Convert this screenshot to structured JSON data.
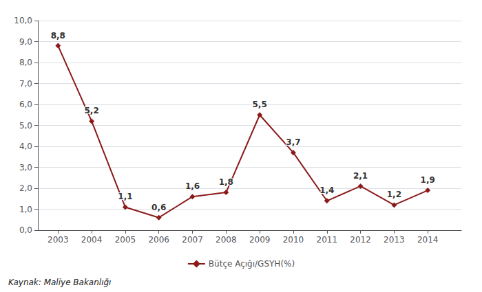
{
  "chart_data": {
    "type": "line",
    "x": [
      2003,
      2004,
      2005,
      2006,
      2007,
      2008,
      2009,
      2010,
      2011,
      2012,
      2013,
      2014
    ],
    "series": [
      {
        "name": "Bütçe Açığı/GSYH(%)",
        "color": "#8B1A1A",
        "marker": "diamond",
        "values": [
          8.8,
          5.2,
          1.1,
          0.6,
          1.6,
          1.8,
          5.5,
          3.7,
          1.4,
          2.1,
          1.2,
          1.9
        ],
        "value_labels": [
          "8,8",
          "5,2",
          "1,1",
          "0,6",
          "1,6",
          "1,8",
          "5,5",
          "3,7",
          "1,4",
          "2,1",
          "1,2",
          "1,9"
        ]
      }
    ],
    "xlim": [
      2002.4,
      2015.0
    ],
    "xticks": [
      2003,
      2004,
      2005,
      2006,
      2007,
      2008,
      2009,
      2010,
      2011,
      2012,
      2013,
      2014
    ],
    "ylim": [
      0,
      10
    ],
    "yticks": [
      {
        "value": 0,
        "label": "0,0"
      },
      {
        "value": 1,
        "label": "1,0"
      },
      {
        "value": 2,
        "label": "2,0"
      },
      {
        "value": 3,
        "label": "3,0"
      },
      {
        "value": 4,
        "label": "4,0"
      },
      {
        "value": 5,
        "label": "5,0"
      },
      {
        "value": 6,
        "label": "6,0"
      },
      {
        "value": 7,
        "label": "7,0"
      },
      {
        "value": 8,
        "label": "8,0"
      },
      {
        "value": 9,
        "label": "9,0"
      },
      {
        "value": 10,
        "label": "10,0"
      }
    ],
    "grid": true,
    "legend": "bottom",
    "data_labels": true,
    "annotations": [
      "Kaynak: Maliye Bakanlığı"
    ]
  }
}
